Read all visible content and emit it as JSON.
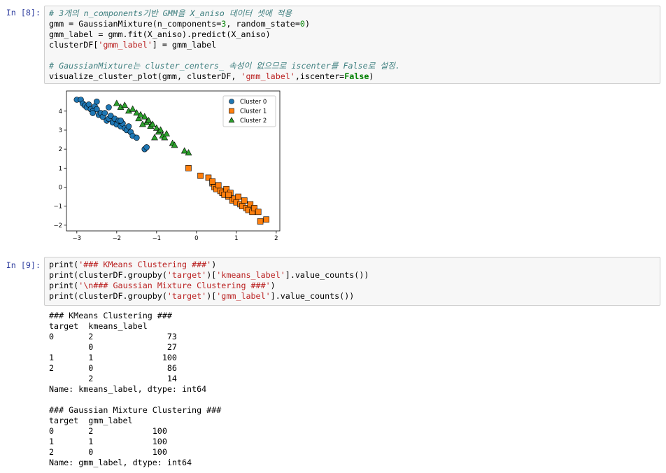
{
  "cells": [
    {
      "prompt": "In [8]:",
      "code": [
        [
          "# 3개의 n_components기반 GMM을 X_aniso 데이터 셋에 적용",
          "gmm = GaussianMixture(n_components=3, random_state=0)",
          "gmm_label = gmm.fit(X_aniso).predict(X_aniso)",
          "clusterDF['gmm_label'] = gmm_label"
        ],
        [
          "# GaussianMixture는 cluster_centers_ 속성이 없으므로 iscenter를 False로 설정.",
          "visualize_cluster_plot(gmm, clusterDF, 'gmm_label',iscenter=False)"
        ]
      ],
      "chart_data": {
        "type": "scatter",
        "xlim": [
          -3.26,
          2.09
        ],
        "ylim": [
          -2.3,
          5.06
        ],
        "xticks": [
          -3,
          -2,
          -1,
          0,
          1,
          2
        ],
        "yticks": [
          -2,
          -1,
          0,
          1,
          2,
          3,
          4
        ],
        "grid": false,
        "legend": "upper right",
        "series": [
          {
            "name": "Cluster 0",
            "color": "#1f77b4",
            "marker": "circle",
            "x": [
              -3.0,
              -2.9,
              -2.85,
              -2.8,
              -2.75,
              -2.7,
              -2.65,
              -2.6,
              -2.55,
              -2.5,
              -2.45,
              -2.4,
              -2.35,
              -2.3,
              -2.25,
              -2.2,
              -2.15,
              -2.1,
              -2.05,
              -2.0,
              -1.95,
              -1.9,
              -1.85,
              -1.8,
              -1.75,
              -1.7,
              -1.65,
              -1.6,
              -1.5,
              -1.3,
              -1.25,
              -2.5,
              -2.2,
              -1.9,
              -2.6
            ],
            "values": [
              4.6,
              4.6,
              4.4,
              4.3,
              4.2,
              4.35,
              4.1,
              4.0,
              4.25,
              4.1,
              3.8,
              3.9,
              3.7,
              3.9,
              3.5,
              3.6,
              3.75,
              3.4,
              3.6,
              3.3,
              3.5,
              3.2,
              3.35,
              3.1,
              3.0,
              3.2,
              2.9,
              2.7,
              2.6,
              2.0,
              2.1,
              4.5,
              4.2,
              3.5,
              3.9
            ]
          },
          {
            "name": "Cluster 1",
            "color": "#ff7f0e",
            "marker": "square",
            "x": [
              -0.2,
              0.1,
              0.3,
              0.4,
              0.45,
              0.5,
              0.55,
              0.6,
              0.65,
              0.7,
              0.75,
              0.8,
              0.85,
              0.9,
              0.95,
              1.0,
              1.05,
              1.1,
              1.15,
              1.2,
              1.25,
              1.3,
              1.35,
              1.4,
              1.45,
              1.55,
              1.6,
              1.75,
              0.4,
              0.8
            ],
            "values": [
              1.0,
              0.6,
              0.5,
              0.2,
              0.0,
              -0.1,
              0.1,
              -0.2,
              -0.3,
              -0.4,
              -0.1,
              -0.5,
              -0.3,
              -0.7,
              -0.6,
              -0.8,
              -0.5,
              -0.9,
              -1.0,
              -0.7,
              -1.1,
              -1.2,
              -0.9,
              -1.3,
              -1.1,
              -1.3,
              -1.8,
              -1.7,
              0.3,
              -0.4
            ]
          },
          {
            "name": "Cluster 2",
            "color": "#2ca02c",
            "marker": "triangle",
            "x": [
              -2.0,
              -1.9,
              -1.8,
              -1.7,
              -1.6,
              -1.5,
              -1.45,
              -1.4,
              -1.3,
              -1.25,
              -1.2,
              -1.15,
              -1.1,
              -1.0,
              -0.95,
              -0.9,
              -0.85,
              -0.8,
              -0.75,
              -0.6,
              -0.55,
              -0.3,
              -0.2,
              -1.35,
              -1.05
            ],
            "values": [
              4.4,
              4.2,
              4.3,
              4.0,
              4.1,
              3.9,
              3.6,
              3.8,
              3.7,
              3.4,
              3.5,
              3.2,
              3.3,
              3.1,
              2.9,
              3.0,
              2.7,
              2.6,
              2.8,
              2.3,
              2.2,
              1.9,
              1.8,
              3.3,
              2.6
            ]
          }
        ]
      }
    },
    {
      "prompt": "In [9]:",
      "code": [
        [
          "print('### KMeans Clustering ###')",
          "print(clusterDF.groupby('target')['kmeans_label'].value_counts())",
          "print('\\n### Gaussian Mixture Clustering ###')",
          "print(clusterDF.groupby('target')['gmm_label'].value_counts())"
        ]
      ],
      "output": [
        [
          "### KMeans Clustering ###",
          "target  kmeans_label",
          "0       2               73",
          "        0               27",
          "1       1              100",
          "2       0               86",
          "        2               14",
          "Name: kmeans_label, dtype: int64"
        ],
        [
          "### Gaussian Mixture Clustering ###",
          "target  gmm_label",
          "0       2            100",
          "1       1            100",
          "2       0            100",
          "Name: gmm_label, dtype: int64"
        ]
      ]
    }
  ]
}
